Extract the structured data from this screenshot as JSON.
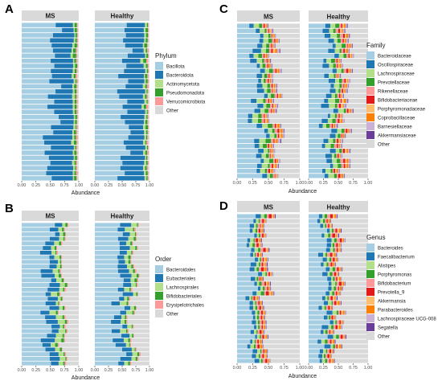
{
  "x_ticks": [
    "0.00",
    "0.25",
    "0.50",
    "0.75",
    "1.00"
  ],
  "x_label": "Abundance",
  "facets": [
    "MS",
    "Healthy"
  ],
  "chart_data": [
    {
      "panel": "A",
      "type": "bar",
      "orientation": "horizontal",
      "stacked": true,
      "facets": [
        "MS",
        "Healthy"
      ],
      "xlabel": "Abundance",
      "xlim": [
        0,
        1
      ],
      "x_ticks": [
        "0.00",
        "0.25",
        "0.50",
        "0.75",
        "1.00"
      ],
      "bars_per_facet": 31,
      "legend_title": "Phylum",
      "legend_position": "right",
      "grid": false,
      "series": [
        {
          "name": "Bacillota",
          "color": "#a6cee3"
        },
        {
          "name": "Bacteroidota",
          "color": "#1f78b4"
        },
        {
          "name": "Actinomycetota",
          "color": "#b2df8a"
        },
        {
          "name": "Pseudomonadota",
          "color": "#33a02c"
        },
        {
          "name": "Verrucomicrobiota",
          "color": "#fb9a99"
        },
        {
          "name": "Other",
          "color": "#d9d9d9"
        }
      ],
      "typical_composition": {
        "Bacillota": 0.55,
        "Bacteroidota": 0.35,
        "Actinomycetota": 0.03,
        "Pseudomonadota": 0.03,
        "Verrucomicrobiota": 0.02,
        "Other": 0.02
      }
    },
    {
      "panel": "B",
      "type": "bar",
      "orientation": "horizontal",
      "stacked": true,
      "facets": [
        "MS",
        "Healthy"
      ],
      "xlabel": "Abundance",
      "xlim": [
        0,
        1
      ],
      "x_ticks": [
        "0.00",
        "0.25",
        "0.50",
        "0.75",
        "1.00"
      ],
      "bars_per_facet": 31,
      "legend_title": "Order",
      "legend_position": "right",
      "grid": false,
      "series": [
        {
          "name": "Bacteroidales",
          "color": "#a6cee3"
        },
        {
          "name": "Eubacteriales",
          "color": "#1f78b4"
        },
        {
          "name": "Lachnospirales",
          "color": "#b2df8a"
        },
        {
          "name": "Bifidobacteriales",
          "color": "#33a02c"
        },
        {
          "name": "Erysipelotrichales",
          "color": "#fb9a99"
        },
        {
          "name": "Other",
          "color": "#d9d9d9"
        }
      ],
      "typical_composition": {
        "Bacteroidales": 0.45,
        "Eubacteriales": 0.15,
        "Lachnospirales": 0.08,
        "Bifidobacteriales": 0.03,
        "Erysipelotrichales": 0.02,
        "Other": 0.27
      }
    },
    {
      "panel": "C",
      "type": "bar",
      "orientation": "horizontal",
      "stacked": true,
      "facets": [
        "MS",
        "Healthy"
      ],
      "xlabel": "Abundance",
      "xlim": [
        0,
        1
      ],
      "x_ticks": [
        "0.00",
        "0.25",
        "0.50",
        "0.75",
        "1.00"
      ],
      "bars_per_facet": 31,
      "legend_title": "Family",
      "legend_position": "right",
      "grid": false,
      "series": [
        {
          "name": "Bacteroidaceae",
          "color": "#a6cee3"
        },
        {
          "name": "Oscillospiraceae",
          "color": "#1f78b4"
        },
        {
          "name": "Lachnospiraceae",
          "color": "#b2df8a"
        },
        {
          "name": "Prevotellaceae",
          "color": "#33a02c"
        },
        {
          "name": "Rikenellaceae",
          "color": "#fb9a99"
        },
        {
          "name": "Bifidobacteriaceae",
          "color": "#e31a1c"
        },
        {
          "name": "Porphyromonadaceae",
          "color": "#fdbf6f"
        },
        {
          "name": "Coprobacillaceae",
          "color": "#ff7f00"
        },
        {
          "name": "Barnesiellaceae",
          "color": "#cab2d6"
        },
        {
          "name": "Akkermansiaceae",
          "color": "#6a3d9a"
        },
        {
          "name": "Other",
          "color": "#d9d9d9"
        }
      ],
      "typical_composition": {
        "Bacteroidaceae": 0.3,
        "Oscillospiraceae": 0.08,
        "Lachnospiraceae": 0.07,
        "Prevotellaceae": 0.05,
        "Rikenellaceae": 0.03,
        "Bifidobacteriaceae": 0.02,
        "Porphyromonadaceae": 0.02,
        "Coprobacillaceae": 0.02,
        "Barnesiellaceae": 0.02,
        "Akkermansiaceae": 0.01,
        "Other": 0.38
      }
    },
    {
      "panel": "D",
      "type": "bar",
      "orientation": "horizontal",
      "stacked": true,
      "facets": [
        "MS",
        "Healthy"
      ],
      "xlabel": "Abundance",
      "xlim": [
        0,
        1
      ],
      "x_ticks": [
        "0.00",
        "0.25",
        "0.50",
        "0.75",
        "1.00"
      ],
      "bars_per_facet": 31,
      "legend_title": "Genus",
      "legend_position": "right",
      "grid": false,
      "series": [
        {
          "name": "Bacteroides",
          "color": "#a6cee3"
        },
        {
          "name": "Faecalibacterium",
          "color": "#1f78b4"
        },
        {
          "name": "Alistipes",
          "color": "#b2df8a"
        },
        {
          "name": "Porphyromonas",
          "color": "#33a02c"
        },
        {
          "name": "Bifidobacterium",
          "color": "#fb9a99"
        },
        {
          "name": "Prevotella_9",
          "color": "#e31a1c"
        },
        {
          "name": "Akkermansia",
          "color": "#fdbf6f"
        },
        {
          "name": "Parabacteroides",
          "color": "#ff7f00"
        },
        {
          "name": "Lachnospiraceae UCG-008",
          "color": "#cab2d6"
        },
        {
          "name": "Segatella",
          "color": "#6a3d9a"
        },
        {
          "name": "Other",
          "color": "#d9d9d9"
        }
      ],
      "typical_composition": {
        "Bacteroides": 0.25,
        "Faecalibacterium": 0.06,
        "Alistipes": 0.04,
        "Porphyromonas": 0.03,
        "Bifidobacterium": 0.03,
        "Prevotella_9": 0.03,
        "Akkermansia": 0.02,
        "Parabacteroides": 0.02,
        "Lachnospiraceae UCG-008": 0.01,
        "Segatella": 0.01,
        "Other": 0.5
      }
    }
  ]
}
